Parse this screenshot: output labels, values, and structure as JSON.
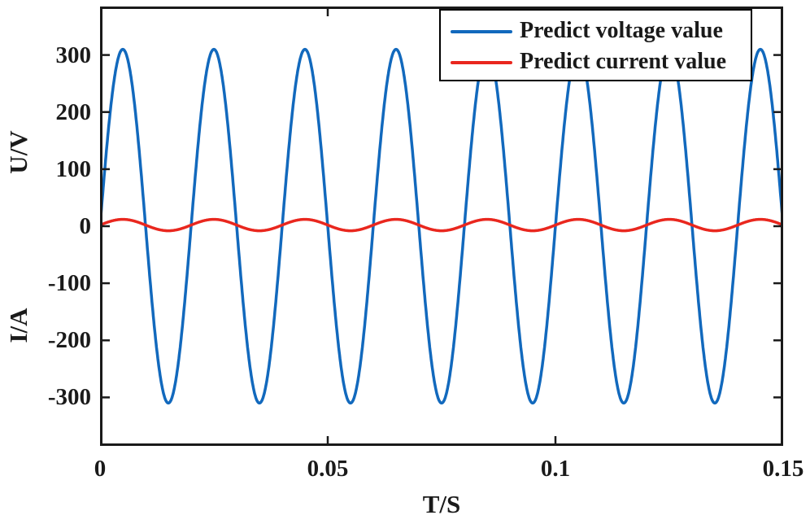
{
  "figure": {
    "background": "#ffffff",
    "axis_color": "#1a1a1a",
    "text_color": "#1a1a1a"
  },
  "chart_data": {
    "type": "line",
    "title": "",
    "xlabel": "T/S",
    "ylabel_top": "U/V",
    "ylabel_bottom": "I/A",
    "xlim": [
      0,
      0.15
    ],
    "ylim": [
      -385,
      385
    ],
    "x_ticks": [
      0,
      0.05,
      0.1,
      0.15
    ],
    "x_tick_labels": [
      "0",
      "0.05",
      "0.1",
      "0.15"
    ],
    "y_ticks": [
      300,
      200,
      100,
      0,
      -100,
      -200,
      -300
    ],
    "y_tick_labels": [
      "300",
      "200",
      "100",
      "0",
      "-100",
      "-200",
      "-300"
    ],
    "grid": false,
    "legend": {
      "position": "top-right",
      "border_color": "#000000",
      "background": "#ffffff"
    },
    "series": [
      {
        "name": "Predict voltage value",
        "color": "#1269bd",
        "waveform": "sine",
        "amplitude": 310,
        "frequency_hz": 50,
        "phase_rad": 0,
        "offset": 0,
        "line_width": 3.5
      },
      {
        "name": "Predict current value",
        "color": "#e9271e",
        "waveform": "sine",
        "amplitude": 10,
        "frequency_hz": 50,
        "phase_rad": 0,
        "offset": 2,
        "line_width": 3.5
      }
    ]
  }
}
